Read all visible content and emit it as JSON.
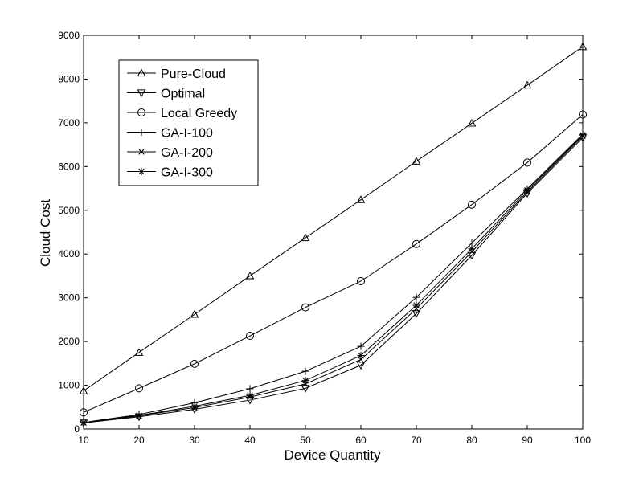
{
  "chart_data": {
    "type": "line",
    "title": "",
    "xlabel": "Device Quantity",
    "ylabel": "Cloud Cost",
    "x": [
      10,
      20,
      30,
      40,
      50,
      60,
      70,
      80,
      90,
      100
    ],
    "xlim": [
      10,
      100
    ],
    "ylim": [
      0,
      9000
    ],
    "xticks": [
      "10",
      "20",
      "30",
      "40",
      "50",
      "60",
      "70",
      "80",
      "90",
      "100"
    ],
    "yticks": [
      "0",
      "1000",
      "2000",
      "3000",
      "4000",
      "5000",
      "6000",
      "7000",
      "8000",
      "9000"
    ],
    "grid": false,
    "legend_position": "top-left",
    "line_color": "#000000",
    "series": [
      {
        "name": "Pure-Cloud",
        "marker": "triangle-up",
        "values": [
          870,
          1750,
          2620,
          3500,
          4370,
          5240,
          6120,
          6990,
          7860,
          8740
        ]
      },
      {
        "name": "Optimal",
        "marker": "triangle-down",
        "values": [
          140,
          280,
          450,
          660,
          930,
          1460,
          2640,
          3970,
          5390,
          6660
        ]
      },
      {
        "name": "Local Greedy",
        "marker": "circle",
        "values": [
          380,
          930,
          1490,
          2130,
          2780,
          3380,
          4230,
          5130,
          6090,
          7190
        ]
      },
      {
        "name": "GA-I-100",
        "marker": "plus",
        "values": [
          150,
          330,
          600,
          920,
          1320,
          1890,
          3010,
          4250,
          5490,
          6740
        ]
      },
      {
        "name": "GA-I-200",
        "marker": "x",
        "values": [
          145,
          300,
          490,
          730,
          1030,
          1590,
          2750,
          4050,
          5420,
          6700
        ]
      },
      {
        "name": "GA-I-300",
        "marker": "asterisk",
        "values": [
          145,
          310,
          520,
          770,
          1110,
          1680,
          2830,
          4120,
          5460,
          6720
        ]
      }
    ]
  }
}
